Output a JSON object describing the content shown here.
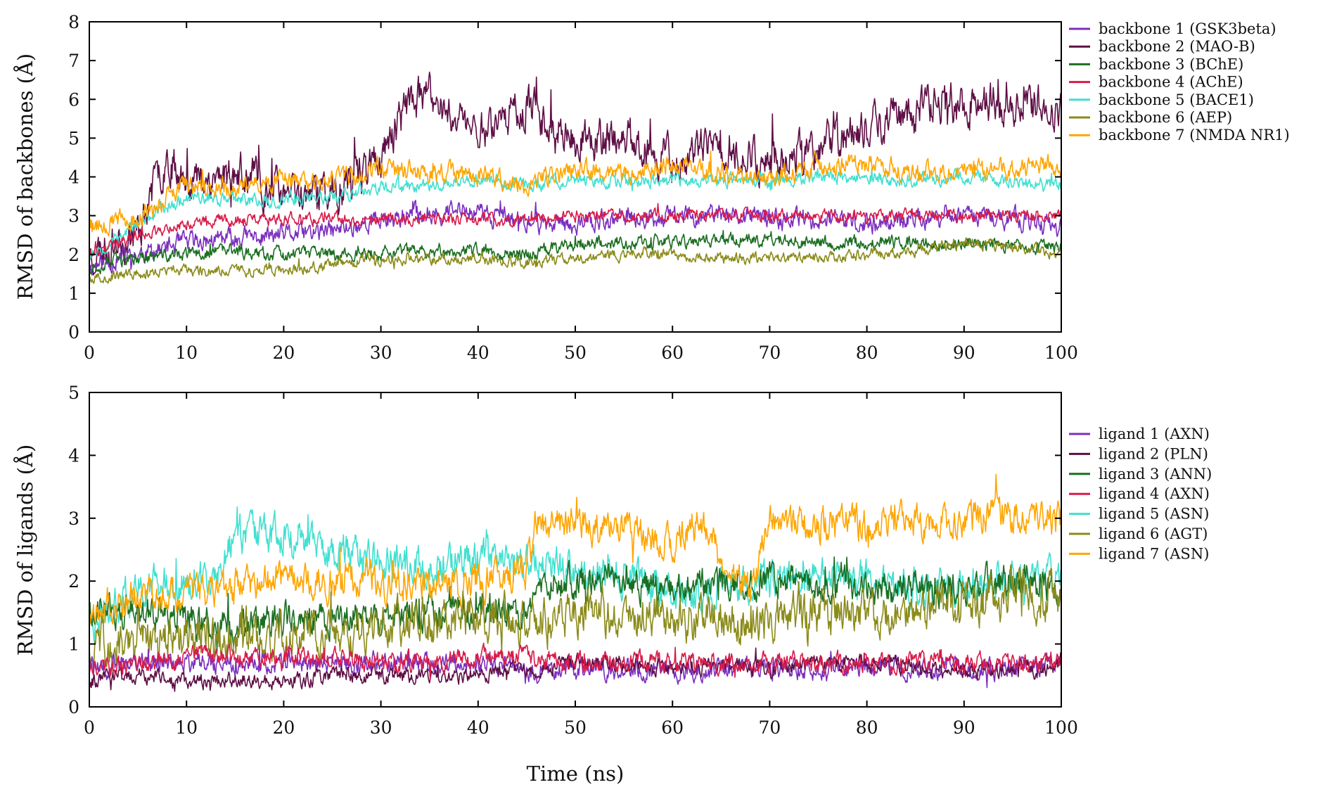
{
  "colors": {
    "purple": "#7b2fbf",
    "darkmaroon": "#5e0f45",
    "darkgreen": "#1b6e21",
    "crimson": "#d81b4a",
    "turquoise": "#40e0d0",
    "olive": "#8b8b1a",
    "orange": "#ffa500"
  },
  "chart_data": [
    {
      "type": "line",
      "ylabel": "RMSD of backbones (Å)",
      "xlabel": "",
      "xlim": [
        0,
        100
      ],
      "ylim": [
        0,
        8
      ],
      "xticks": [
        "0",
        "10",
        "20",
        "30",
        "40",
        "50",
        "60",
        "70",
        "80",
        "90",
        "100"
      ],
      "yticks": [
        "0",
        "1",
        "2",
        "3",
        "4",
        "5",
        "6",
        "7",
        "8"
      ],
      "legend_position": "right",
      "grid": false,
      "series": [
        {
          "name": "backbone 1 (GSK3beta)",
          "color": "#7b2fbf",
          "noise": 0.22,
          "seed": 11,
          "x": [
            0,
            5,
            10,
            15,
            20,
            25,
            30,
            35,
            40,
            45,
            50,
            55,
            60,
            65,
            70,
            75,
            80,
            85,
            90,
            95,
            100
          ],
          "y": [
            1.7,
            2.0,
            2.3,
            2.4,
            2.5,
            2.6,
            2.9,
            3.1,
            3.1,
            2.8,
            2.8,
            2.9,
            3.0,
            3.0,
            2.9,
            2.9,
            2.8,
            2.9,
            3.0,
            2.9,
            2.7
          ]
        },
        {
          "name": "backbone 2 (MAO-B)",
          "color": "#5e0f45",
          "noise": 0.45,
          "seed": 23,
          "x": [
            0,
            5,
            8,
            10,
            15,
            20,
            25,
            30,
            33,
            35,
            40,
            45,
            50,
            55,
            60,
            65,
            70,
            75,
            80,
            85,
            90,
            95,
            100
          ],
          "y": [
            2.0,
            2.6,
            4.6,
            3.9,
            4.1,
            3.5,
            3.6,
            4.5,
            6.0,
            6.0,
            5.2,
            5.9,
            4.9,
            5.0,
            4.4,
            4.8,
            4.4,
            4.8,
            5.2,
            5.8,
            5.9,
            5.9,
            5.8
          ]
        },
        {
          "name": "backbone 3 (BChE)",
          "color": "#1b6e21",
          "noise": 0.15,
          "seed": 37,
          "x": [
            0,
            5,
            10,
            15,
            20,
            25,
            30,
            35,
            40,
            45,
            50,
            55,
            60,
            65,
            70,
            75,
            80,
            85,
            90,
            95,
            100
          ],
          "y": [
            1.7,
            1.9,
            2.0,
            2.1,
            2.0,
            2.0,
            2.0,
            2.1,
            2.1,
            2.0,
            2.3,
            2.3,
            2.3,
            2.4,
            2.4,
            2.3,
            2.3,
            2.3,
            2.3,
            2.2,
            2.2
          ]
        },
        {
          "name": "backbone 4 (AChE)",
          "color": "#d81b4a",
          "noise": 0.13,
          "seed": 41,
          "x": [
            0,
            5,
            10,
            15,
            20,
            25,
            30,
            35,
            40,
            45,
            50,
            55,
            60,
            65,
            70,
            75,
            80,
            85,
            90,
            95,
            100
          ],
          "y": [
            2.0,
            2.5,
            2.8,
            2.9,
            2.9,
            2.9,
            2.9,
            2.9,
            2.9,
            2.9,
            3.0,
            3.0,
            3.0,
            3.0,
            3.0,
            3.0,
            3.0,
            3.0,
            3.0,
            3.0,
            3.0
          ]
        },
        {
          "name": "backbone 5 (BACE1)",
          "color": "#40e0d0",
          "noise": 0.15,
          "seed": 53,
          "x": [
            0,
            5,
            10,
            15,
            20,
            25,
            30,
            35,
            40,
            45,
            50,
            55,
            60,
            65,
            70,
            75,
            80,
            85,
            90,
            95,
            100
          ],
          "y": [
            2.0,
            2.8,
            3.5,
            3.4,
            3.4,
            3.5,
            3.7,
            3.8,
            3.9,
            3.8,
            3.9,
            3.9,
            3.9,
            3.9,
            3.9,
            4.0,
            4.0,
            3.9,
            4.0,
            3.9,
            3.8
          ]
        },
        {
          "name": "backbone 6 (AEP)",
          "color": "#8b8b1a",
          "noise": 0.12,
          "seed": 67,
          "x": [
            0,
            5,
            10,
            15,
            20,
            25,
            30,
            35,
            40,
            45,
            50,
            55,
            60,
            65,
            70,
            75,
            80,
            85,
            90,
            95,
            100
          ],
          "y": [
            1.4,
            1.5,
            1.6,
            1.6,
            1.6,
            1.7,
            1.9,
            1.9,
            1.9,
            1.8,
            1.9,
            2.0,
            2.0,
            1.9,
            1.9,
            1.9,
            2.0,
            2.1,
            2.3,
            2.2,
            2.0
          ]
        },
        {
          "name": "backbone 7 (NMDA NR1)",
          "color": "#ffa500",
          "noise": 0.22,
          "seed": 79,
          "x": [
            0,
            5,
            10,
            15,
            20,
            25,
            30,
            35,
            40,
            45,
            50,
            55,
            60,
            65,
            70,
            75,
            80,
            85,
            90,
            95,
            100
          ],
          "y": [
            2.8,
            2.9,
            3.8,
            3.7,
            3.9,
            3.9,
            4.2,
            4.1,
            4.0,
            3.8,
            4.2,
            4.1,
            4.3,
            4.1,
            4.0,
            4.3,
            4.3,
            4.1,
            4.2,
            4.2,
            4.3
          ]
        }
      ]
    },
    {
      "type": "line",
      "ylabel": "RMSD of ligands (Å)",
      "xlabel": "Time (ns)",
      "xlim": [
        0,
        100
      ],
      "ylim": [
        0,
        5
      ],
      "xticks": [
        "0",
        "10",
        "20",
        "30",
        "40",
        "50",
        "60",
        "70",
        "80",
        "90",
        "100"
      ],
      "yticks": [
        "0",
        "1",
        "2",
        "3",
        "4",
        "5"
      ],
      "legend_position": "right",
      "grid": false,
      "series": [
        {
          "name": "ligand 1 (AXN)",
          "color": "#7b2fbf",
          "noise": 0.14,
          "seed": 101,
          "x": [
            0,
            5,
            10,
            15,
            20,
            25,
            30,
            35,
            40,
            45,
            50,
            55,
            60,
            65,
            70,
            75,
            80,
            85,
            90,
            95,
            100
          ],
          "y": [
            0.6,
            0.7,
            0.7,
            0.7,
            0.7,
            0.7,
            0.7,
            0.7,
            0.7,
            0.6,
            0.6,
            0.6,
            0.6,
            0.6,
            0.6,
            0.6,
            0.6,
            0.6,
            0.6,
            0.6,
            0.7
          ]
        },
        {
          "name": "ligand 2 (PLN)",
          "color": "#5e0f45",
          "noise": 0.11,
          "seed": 113,
          "x": [
            0,
            5,
            10,
            15,
            20,
            25,
            30,
            35,
            40,
            45,
            50,
            55,
            60,
            65,
            70,
            75,
            80,
            85,
            90,
            95,
            100
          ],
          "y": [
            0.4,
            0.5,
            0.4,
            0.4,
            0.4,
            0.5,
            0.5,
            0.5,
            0.5,
            0.6,
            0.7,
            0.7,
            0.6,
            0.7,
            0.6,
            0.7,
            0.7,
            0.6,
            0.6,
            0.6,
            0.6
          ]
        },
        {
          "name": "ligand 3 (ANN)",
          "color": "#1b6e21",
          "noise": 0.22,
          "seed": 127,
          "x": [
            0,
            5,
            10,
            15,
            20,
            25,
            30,
            35,
            40,
            45,
            47,
            50,
            55,
            60,
            65,
            70,
            75,
            80,
            85,
            90,
            95,
            100
          ],
          "y": [
            1.6,
            1.5,
            1.4,
            1.3,
            1.4,
            1.4,
            1.4,
            1.5,
            1.5,
            1.5,
            2.0,
            2.0,
            2.0,
            1.9,
            2.0,
            2.0,
            1.9,
            1.9,
            1.9,
            1.9,
            2.0,
            1.9
          ]
        },
        {
          "name": "ligand 4 (AXN)",
          "color": "#d81b4a",
          "noise": 0.13,
          "seed": 131,
          "x": [
            0,
            5,
            10,
            15,
            20,
            25,
            30,
            35,
            40,
            45,
            50,
            55,
            60,
            65,
            70,
            75,
            80,
            85,
            90,
            95,
            100
          ],
          "y": [
            0.6,
            0.7,
            0.8,
            0.8,
            0.8,
            0.8,
            0.7,
            0.7,
            0.8,
            0.8,
            0.7,
            0.7,
            0.7,
            0.7,
            0.7,
            0.7,
            0.7,
            0.7,
            0.7,
            0.7,
            0.7
          ]
        },
        {
          "name": "ligand 5 (ASN)",
          "color": "#40e0d0",
          "noise": 0.25,
          "seed": 149,
          "x": [
            0,
            5,
            10,
            13,
            15,
            20,
            25,
            30,
            35,
            40,
            44,
            47,
            50,
            55,
            60,
            65,
            70,
            75,
            80,
            85,
            90,
            95,
            100
          ],
          "y": [
            1.3,
            1.9,
            2.0,
            2.0,
            2.7,
            2.7,
            2.5,
            2.3,
            2.2,
            2.3,
            2.4,
            2.3,
            2.1,
            2.1,
            1.8,
            1.9,
            2.0,
            2.1,
            2.0,
            1.9,
            1.9,
            2.0,
            2.0
          ]
        },
        {
          "name": "ligand 6 (AGT)",
          "color": "#8b8b1a",
          "noise": 0.3,
          "seed": 151,
          "x": [
            0,
            5,
            10,
            15,
            20,
            25,
            30,
            35,
            40,
            45,
            50,
            55,
            60,
            65,
            70,
            75,
            80,
            85,
            90,
            95,
            100
          ],
          "y": [
            1.0,
            1.0,
            1.1,
            1.1,
            1.2,
            1.2,
            1.3,
            1.4,
            1.4,
            1.4,
            1.5,
            1.5,
            1.4,
            1.4,
            1.4,
            1.5,
            1.5,
            1.5,
            1.6,
            1.8,
            1.7
          ]
        },
        {
          "name": "ligand 7 (ASN)",
          "color": "#ffa500",
          "noise": 0.24,
          "seed": 167,
          "x": [
            0,
            5,
            10,
            15,
            20,
            25,
            30,
            35,
            40,
            45,
            46,
            50,
            55,
            60,
            63,
            65,
            68,
            70,
            75,
            80,
            85,
            90,
            95,
            100
          ],
          "y": [
            1.5,
            1.8,
            1.8,
            1.9,
            2.1,
            2.0,
            2.0,
            1.9,
            2.0,
            2.1,
            2.9,
            2.9,
            2.8,
            2.6,
            2.9,
            2.3,
            1.9,
            2.9,
            2.9,
            2.9,
            2.9,
            3.0,
            3.0,
            3.0
          ]
        }
      ]
    }
  ]
}
